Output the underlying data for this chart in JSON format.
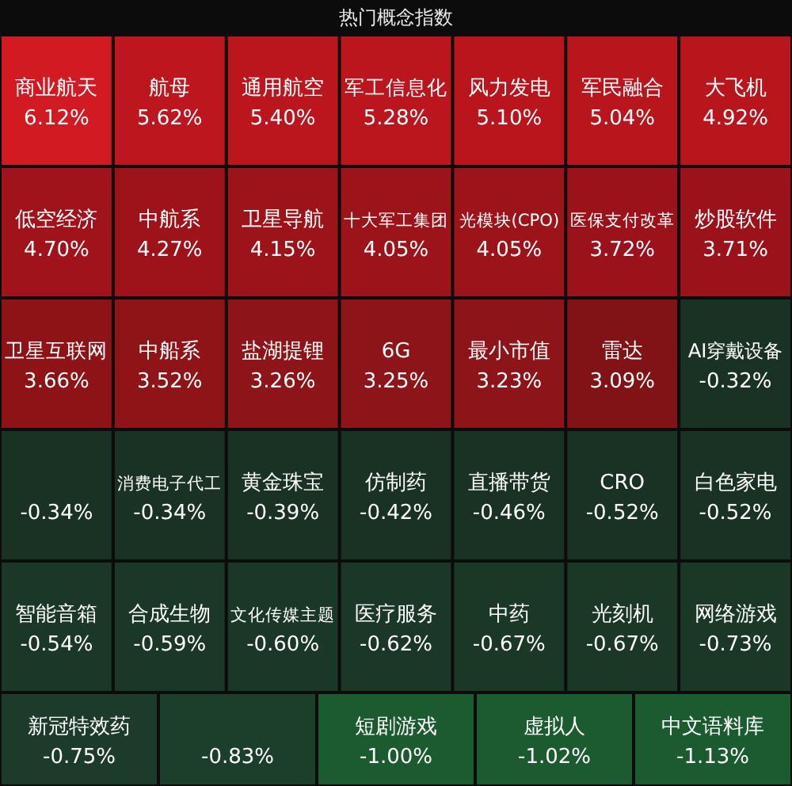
{
  "chart_data": {
    "type": "other",
    "title": "热门概念指数",
    "categories": [
      "商业航天",
      "航母",
      "通用航空",
      "军工信息化",
      "风力发电",
      "军民融合",
      "大飞机",
      "低空经济",
      "中航系",
      "卫星导航",
      "十大军工集团",
      "光模块(CPO)",
      "医保支付改革",
      "炒股软件",
      "卫星互联网",
      "中船系",
      "盐湖提锂",
      "6G",
      "最小市值",
      "雷达",
      "AI穿戴设备",
      null,
      "消费电子代工",
      "黄金珠宝",
      "仿制药",
      "直播带货",
      "CRO",
      "白色家电",
      "智能音箱",
      "合成生物",
      "文化传媒主题",
      "医疗服务",
      "中药",
      "光刻机",
      "网络游戏",
      "新冠特效药",
      null,
      "短剧游戏",
      "虚拟人",
      "中文语料库"
    ],
    "values": [
      6.12,
      5.62,
      5.4,
      5.28,
      5.1,
      5.04,
      4.92,
      4.7,
      4.27,
      4.15,
      4.05,
      4.05,
      3.72,
      3.71,
      3.66,
      3.52,
      3.26,
      3.25,
      3.23,
      3.09,
      -0.32,
      -0.34,
      -0.34,
      -0.39,
      -0.42,
      -0.46,
      -0.52,
      -0.52,
      -0.54,
      -0.59,
      -0.6,
      -0.62,
      -0.67,
      -0.67,
      -0.73,
      -0.75,
      -0.83,
      -1.0,
      -1.02,
      -1.13
    ],
    "value_labels": [
      "6.12%",
      "5.62%",
      "5.40%",
      "5.28%",
      "5.10%",
      "5.04%",
      "4.92%",
      "4.70%",
      "4.27%",
      "4.15%",
      "4.05%",
      "4.05%",
      "3.72%",
      "3.71%",
      "3.66%",
      "3.52%",
      "3.26%",
      "3.25%",
      "3.23%",
      "3.09%",
      "-0.32%",
      "-0.34%",
      "-0.34%",
      "-0.39%",
      "-0.42%",
      "-0.46%",
      "-0.52%",
      "-0.52%",
      "-0.54%",
      "-0.59%",
      "-0.60%",
      "-0.62%",
      "-0.67%",
      "-0.67%",
      "-0.73%",
      "-0.75%",
      "-0.83%",
      "-1.00%",
      "-1.02%",
      "-1.13%"
    ],
    "colors": [
      "#d11a22",
      "#c0161e",
      "#c0161e",
      "#c0161e",
      "#c0161e",
      "#c0161e",
      "#c0161e",
      "#a8141c",
      "#a8141c",
      "#a8141c",
      "#a8141c",
      "#a8141c",
      "#a8141c",
      "#a8141c",
      "#9a1519",
      "#9a1519",
      "#9a1519",
      "#9a1519",
      "#9a1519",
      "#8e1418",
      "#1d3b2a",
      "#1d3b2a",
      "#1d3b2a",
      "#1d3b2a",
      "#1d3b2a",
      "#1d3b2a",
      "#1d3b2a",
      "#1d3b2a",
      "#1e412d",
      "#1e412d",
      "#1e412d",
      "#1e412d",
      "#1e412d",
      "#1e412d",
      "#1e412d",
      "#1f4530",
      "#1f4a32",
      "#1f6b37",
      "#1f6b37",
      "#1f6b37"
    ]
  }
}
